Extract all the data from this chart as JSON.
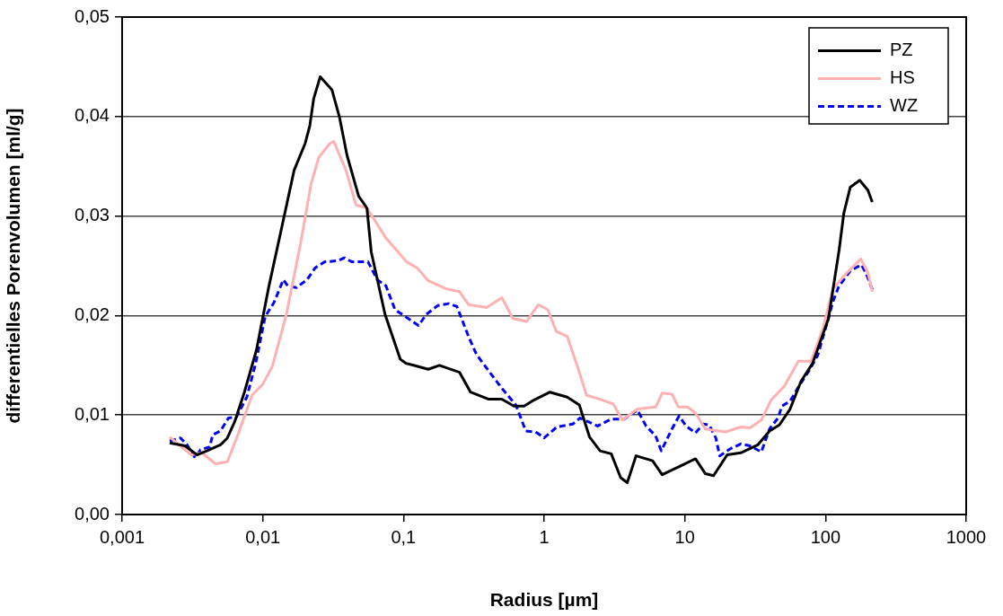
{
  "chart_data": {
    "type": "line",
    "xlabel": "Radius [µm]",
    "ylabel": "differentielles Porenvolumen [ml/g]",
    "log": "x",
    "xlim": [
      0.001,
      1000
    ],
    "xticks": [
      {
        "value": 0.001,
        "label": "0,001"
      },
      {
        "value": 0.01,
        "label": "0,01"
      },
      {
        "value": 0.1,
        "label": "0,1"
      },
      1,
      10,
      100,
      1000
    ],
    "ylim": [
      0,
      0.05
    ],
    "yticks": [
      {
        "value": 0,
        "label": "0,00"
      },
      {
        "value": 0.01,
        "label": "0,01"
      },
      {
        "value": 0.02,
        "label": "0,02"
      },
      {
        "value": 0.03,
        "label": "0,03"
      },
      {
        "value": 0.04,
        "label": "0,04"
      },
      {
        "value": 0.05,
        "label": "0,05"
      }
    ],
    "grid": "y",
    "legend": "top right",
    "marker": "none",
    "series": [
      {
        "name": "PZ",
        "color": "#000000",
        "line_style": "solid",
        "x": [
          0.00218,
          0.0028,
          0.0034,
          0.004,
          0.005,
          0.0056,
          0.0063,
          0.0074,
          0.009,
          0.011,
          0.0138,
          0.0167,
          0.02,
          0.0216,
          0.023,
          0.0256,
          0.031,
          0.035,
          0.0397,
          0.048,
          0.055,
          0.059,
          0.074,
          0.095,
          0.104,
          0.118,
          0.15,
          0.18,
          0.25,
          0.3,
          0.4,
          0.5,
          0.61,
          0.72,
          0.82,
          1.1,
          1.46,
          1.78,
          2.1,
          2.5,
          3.0,
          3.5,
          3.9,
          4.5,
          5.9,
          6.9,
          9.7,
          11.9,
          14,
          16,
          20,
          25,
          33,
          40,
          47,
          56,
          67,
          81,
          105,
          125,
          135,
          150,
          175,
          200,
          215
        ],
        "values": [
          0.0072,
          0.0069,
          0.006,
          0.0064,
          0.007,
          0.0077,
          0.0093,
          0.0123,
          0.0165,
          0.0228,
          0.0292,
          0.0346,
          0.0373,
          0.0391,
          0.0418,
          0.044,
          0.0427,
          0.04,
          0.0361,
          0.032,
          0.0308,
          0.0264,
          0.0201,
          0.0156,
          0.0152,
          0.015,
          0.0146,
          0.015,
          0.0143,
          0.0123,
          0.0116,
          0.0116,
          0.0109,
          0.0109,
          0.0114,
          0.0123,
          0.0118,
          0.011,
          0.0078,
          0.0064,
          0.0061,
          0.0037,
          0.0032,
          0.0059,
          0.0054,
          0.004,
          0.005,
          0.0056,
          0.0041,
          0.0039,
          0.006,
          0.0062,
          0.007,
          0.0084,
          0.009,
          0.0106,
          0.0134,
          0.0152,
          0.0197,
          0.0266,
          0.0303,
          0.0329,
          0.0336,
          0.0326,
          0.0314
        ]
      },
      {
        "name": "HS",
        "color": "#ffb0b0",
        "line_style": "solid",
        "x": [
          0.00218,
          0.0026,
          0.0031,
          0.0037,
          0.0046,
          0.0056,
          0.0066,
          0.0084,
          0.01,
          0.0117,
          0.0147,
          0.0186,
          0.022,
          0.025,
          0.03,
          0.032,
          0.039,
          0.046,
          0.055,
          0.075,
          0.105,
          0.125,
          0.15,
          0.2,
          0.25,
          0.29,
          0.39,
          0.5,
          0.6,
          0.75,
          0.91,
          1.06,
          1.22,
          1.46,
          1.75,
          2.0,
          2.6,
          3.1,
          3.6,
          4.6,
          6.2,
          6.9,
          8.1,
          9.0,
          10.5,
          11.9,
          14,
          19.4,
          25,
          29,
          35,
          41,
          51,
          64,
          79,
          96,
          113,
          140,
          178,
          200,
          215
        ],
        "values": [
          0.0078,
          0.0069,
          0.006,
          0.0062,
          0.0051,
          0.0053,
          0.0079,
          0.012,
          0.0131,
          0.0149,
          0.0201,
          0.0273,
          0.0332,
          0.0359,
          0.0373,
          0.0375,
          0.0346,
          0.0311,
          0.0308,
          0.0278,
          0.0254,
          0.0248,
          0.0235,
          0.0227,
          0.0224,
          0.0211,
          0.0208,
          0.0218,
          0.0197,
          0.0194,
          0.0211,
          0.0206,
          0.0184,
          0.0179,
          0.0146,
          0.012,
          0.0115,
          0.0111,
          0.0095,
          0.0106,
          0.0108,
          0.0122,
          0.0121,
          0.0108,
          0.0108,
          0.0102,
          0.0086,
          0.0083,
          0.0088,
          0.0087,
          0.0095,
          0.0115,
          0.0129,
          0.0154,
          0.0154,
          0.0187,
          0.0227,
          0.0242,
          0.0257,
          0.0243,
          0.0224
        ]
      },
      {
        "name": "WZ",
        "color": "#0000ff",
        "line_style": "dashed",
        "x": [
          0.00218,
          0.0026,
          0.0029,
          0.0033,
          0.0036,
          0.0042,
          0.0044,
          0.005,
          0.0057,
          0.0065,
          0.0077,
          0.0089,
          0.0104,
          0.012,
          0.014,
          0.015,
          0.0173,
          0.0206,
          0.0236,
          0.0276,
          0.034,
          0.038,
          0.043,
          0.048,
          0.056,
          0.065,
          0.075,
          0.087,
          0.108,
          0.128,
          0.145,
          0.175,
          0.21,
          0.24,
          0.29,
          0.33,
          0.41,
          0.5,
          0.63,
          0.74,
          0.87,
          1.0,
          1.23,
          1.6,
          1.8,
          2.4,
          3.0,
          3.7,
          4.6,
          5.3,
          6.2,
          6.8,
          8.1,
          9.1,
          10.2,
          11.9,
          13.5,
          14.9,
          16.6,
          17.7,
          21,
          25,
          29,
          35,
          40,
          46,
          49,
          56,
          66,
          76,
          88,
          100,
          113,
          124,
          150,
          180,
          195,
          215
        ],
        "values": [
          0.0074,
          0.0077,
          0.007,
          0.0057,
          0.0065,
          0.0068,
          0.008,
          0.0084,
          0.0097,
          0.0098,
          0.0118,
          0.0152,
          0.0199,
          0.0213,
          0.0236,
          0.023,
          0.0228,
          0.0236,
          0.0248,
          0.0254,
          0.0255,
          0.0258,
          0.0254,
          0.0254,
          0.0254,
          0.0236,
          0.023,
          0.0206,
          0.0197,
          0.019,
          0.0201,
          0.021,
          0.0212,
          0.0209,
          0.0179,
          0.0161,
          0.0143,
          0.0127,
          0.011,
          0.0084,
          0.0083,
          0.0077,
          0.0088,
          0.0091,
          0.0097,
          0.0089,
          0.0096,
          0.0096,
          0.0105,
          0.0089,
          0.0079,
          0.0064,
          0.0086,
          0.0099,
          0.0089,
          0.0082,
          0.0091,
          0.009,
          0.0077,
          0.0059,
          0.0066,
          0.0071,
          0.0069,
          0.0063,
          0.0086,
          0.0097,
          0.0109,
          0.0114,
          0.0131,
          0.0144,
          0.016,
          0.0187,
          0.0214,
          0.0229,
          0.0245,
          0.0251,
          0.0242,
          0.0226
        ]
      }
    ]
  }
}
